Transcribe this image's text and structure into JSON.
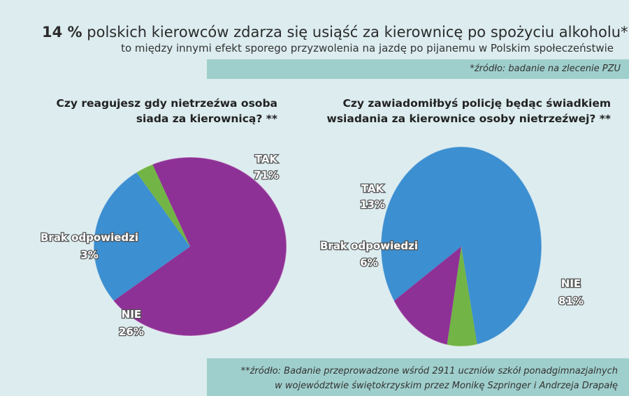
{
  "header": {
    "title_bold": "14 %",
    "title_rest": "polskich kierowców zdarza się usiąść za kierownicę po spożyciu alkoholu*",
    "subtitle": "to między innymi efekt sporego przyzwolenia na jazdę po pijanemu w Polskim społeczeństwie",
    "source_top": "*źródło: badanie na zlecenie PZU"
  },
  "footer": {
    "line1": "**źródło: Badanie przeprowadzone wśród 2911 uczniów szkół ponadgimnazjalnych",
    "line2": "w województwie świętokrzyskim przez Monikę Szpringer i Andrzeja Drapałę"
  },
  "colors": {
    "background": "#dcecef",
    "band": "#9fcfcc",
    "TAK": "#8e3196",
    "NIE": "#3c8fd0",
    "Brak odpowiedzi": "#72b445"
  },
  "chart_data": [
    {
      "type": "pie",
      "title_line1": "Czy reagujesz gdy nietrzeźwa osoba",
      "title_line2": "siada za kierownicą? **",
      "slices": [
        {
          "label": "TAK",
          "value": 71,
          "display": "71%"
        },
        {
          "label": "NIE",
          "value": 26,
          "display": "26%"
        },
        {
          "label": "Brak odpowiedzi",
          "value": 3,
          "display": "3%"
        }
      ]
    },
    {
      "type": "pie",
      "title_line1": "Czy zawiadomiłbyś policję będąc świadkiem",
      "title_line2": "wsiadania za kierownice osoby nietrzeźwej? **",
      "slices": [
        {
          "label": "TAK",
          "value": 13,
          "display": "13%"
        },
        {
          "label": "NIE",
          "value": 81,
          "display": "81%"
        },
        {
          "label": "Brak odpowiedzi",
          "value": 6,
          "display": "6%"
        }
      ]
    }
  ]
}
